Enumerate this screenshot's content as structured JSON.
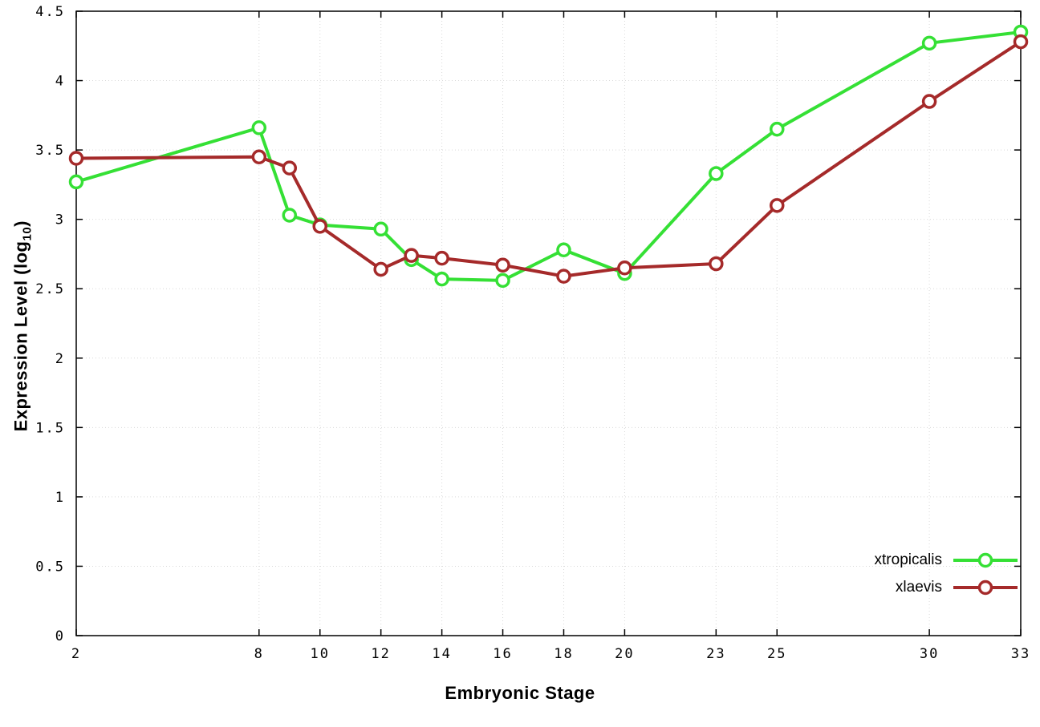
{
  "chart_data": {
    "type": "line",
    "xlabel": "Embryonic Stage",
    "ylabel": "Expression Level (log10)",
    "ylabel_parts": {
      "pre": "Expression Level (log",
      "sub": "10",
      "post": ")"
    },
    "xlim": [
      2,
      33
    ],
    "ylim": [
      0,
      4.5
    ],
    "xticks": [
      {
        "v": 2,
        "label": "2"
      },
      {
        "v": 8,
        "label": "8"
      },
      {
        "v": 10,
        "label": "10"
      },
      {
        "v": 12,
        "label": "12"
      },
      {
        "v": 14,
        "label": "14"
      },
      {
        "v": 16,
        "label": "16"
      },
      {
        "v": 18,
        "label": "18"
      },
      {
        "v": 20,
        "label": "20"
      },
      {
        "v": 23,
        "label": "23"
      },
      {
        "v": 25,
        "label": "25"
      },
      {
        "v": 30,
        "label": "30"
      },
      {
        "v": 33,
        "label": "33"
      }
    ],
    "yticks": [
      {
        "v": 0,
        "label": "0"
      },
      {
        "v": 0.5,
        "label": "0.5"
      },
      {
        "v": 1,
        "label": "1"
      },
      {
        "v": 1.5,
        "label": "1.5"
      },
      {
        "v": 2,
        "label": "2"
      },
      {
        "v": 2.5,
        "label": "2.5"
      },
      {
        "v": 3,
        "label": "3"
      },
      {
        "v": 3.5,
        "label": "3.5"
      },
      {
        "v": 4,
        "label": "4"
      },
      {
        "v": 4.5,
        "label": "4.5"
      }
    ],
    "x": [
      2,
      8,
      9,
      10,
      12,
      13,
      14,
      16,
      18,
      20,
      23,
      25,
      30,
      33
    ],
    "series": [
      {
        "name": "xtropicalis",
        "color": "#35e035",
        "values": [
          3.27,
          3.66,
          3.03,
          2.96,
          2.93,
          2.71,
          2.57,
          2.56,
          2.78,
          2.61,
          3.33,
          3.65,
          4.27,
          4.35
        ]
      },
      {
        "name": "xlaevis",
        "color": "#a52a2a",
        "values": [
          3.44,
          3.45,
          3.37,
          2.95,
          2.64,
          2.74,
          2.72,
          2.67,
          2.59,
          2.65,
          2.68,
          3.1,
          3.85,
          4.28
        ]
      }
    ],
    "grid": true,
    "legend_position": "bottom-right",
    "style": {
      "grid_color": "#d9d9d9",
      "border_color": "#000000",
      "line_width": 4,
      "marker_radius": 7.5,
      "marker_stroke": 3.5
    }
  }
}
